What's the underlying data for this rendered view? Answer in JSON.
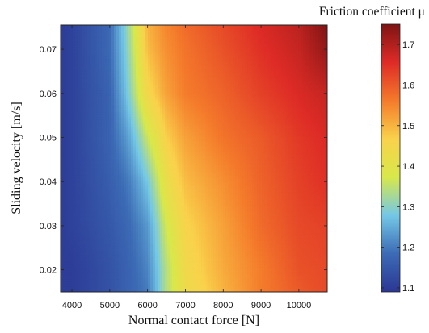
{
  "chart_data": {
    "type": "heatmap",
    "title": "",
    "xlabel": "Normal contact force [N]",
    "ylabel": "Sliding velocity [m/s]",
    "colorbar_label": "Friction coefficient μ",
    "xlim": [
      3700,
      10750
    ],
    "ylim": [
      0.015,
      0.0755
    ],
    "clim": [
      1.09,
      1.75
    ],
    "x_ticks": [
      4000,
      5000,
      6000,
      7000,
      8000,
      9000,
      10000
    ],
    "y_ticks": [
      0.02,
      0.03,
      0.04,
      0.05,
      0.06,
      0.07
    ],
    "colorbar_ticks": [
      1.1,
      1.2,
      1.3,
      1.4,
      1.5,
      1.6,
      1.7
    ],
    "colormap": "jet",
    "colormap_stops": [
      "#2b3794",
      "#3c6bb5",
      "#74c8e6",
      "#d8e84a",
      "#f9d24b",
      "#f47b2b",
      "#de2b26",
      "#7d1414"
    ],
    "x": [
      3700,
      4000,
      5000,
      5500,
      6000,
      6500,
      7000,
      8000,
      9000,
      10000,
      10750
    ],
    "y": [
      0.015,
      0.02,
      0.03,
      0.04,
      0.05,
      0.06,
      0.07,
      0.0755
    ],
    "values": [
      [
        1.1,
        1.1,
        1.14,
        1.17,
        1.2,
        1.34,
        1.43,
        1.5,
        1.56,
        1.6,
        1.62
      ],
      [
        1.1,
        1.1,
        1.14,
        1.17,
        1.21,
        1.34,
        1.44,
        1.51,
        1.56,
        1.61,
        1.62
      ],
      [
        1.1,
        1.11,
        1.15,
        1.18,
        1.23,
        1.37,
        1.46,
        1.52,
        1.58,
        1.62,
        1.63
      ],
      [
        1.1,
        1.11,
        1.16,
        1.2,
        1.28,
        1.42,
        1.49,
        1.54,
        1.59,
        1.63,
        1.65
      ],
      [
        1.1,
        1.11,
        1.17,
        1.24,
        1.36,
        1.47,
        1.52,
        1.57,
        1.6,
        1.64,
        1.66
      ],
      [
        1.1,
        1.11,
        1.17,
        1.29,
        1.45,
        1.52,
        1.56,
        1.59,
        1.63,
        1.66,
        1.68
      ],
      [
        1.1,
        1.11,
        1.18,
        1.31,
        1.49,
        1.54,
        1.57,
        1.61,
        1.65,
        1.68,
        1.73
      ],
      [
        1.1,
        1.11,
        1.18,
        1.32,
        1.5,
        1.55,
        1.58,
        1.62,
        1.66,
        1.69,
        1.75
      ]
    ]
  }
}
